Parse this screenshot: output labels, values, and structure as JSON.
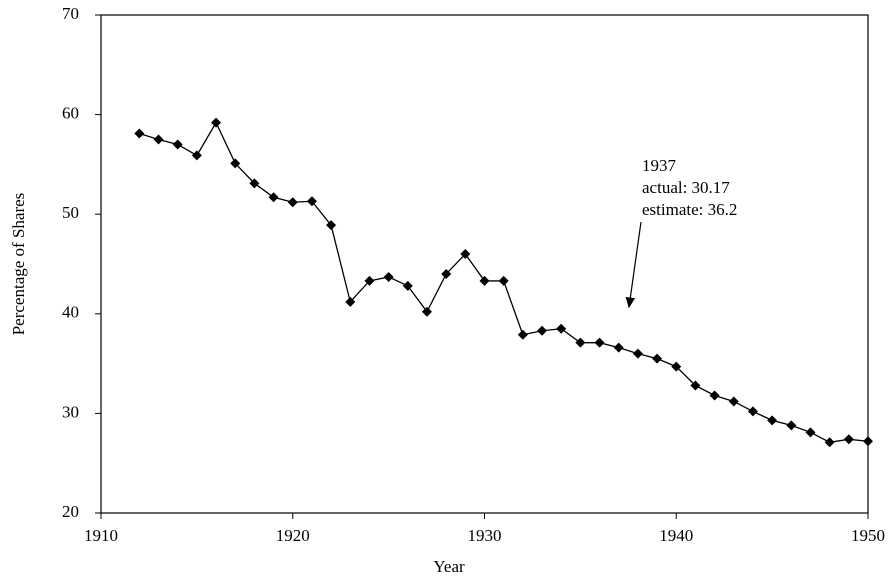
{
  "chart_data": {
    "type": "line",
    "x_label": "Year",
    "y_label": "Percentage of Shares",
    "annotation": [
      "1937",
      "actual: 30.17",
      "estimate: 36.2"
    ],
    "x": [
      1912,
      1913,
      1914,
      1915,
      1916,
      1917,
      1918,
      1919,
      1920,
      1921,
      1922,
      1923,
      1924,
      1925,
      1926,
      1927,
      1928,
      1929,
      1930,
      1931,
      1932,
      1933,
      1934,
      1935,
      1936,
      1937,
      1938,
      1939,
      1940,
      1941,
      1942,
      1943,
      1944,
      1945,
      1946,
      1947,
      1948,
      1949,
      1950
    ],
    "series": [
      {
        "color": "#000000",
        "values": [
          58.1,
          57.5,
          57.0,
          55.9,
          59.2,
          55.1,
          53.1,
          51.7,
          51.2,
          51.3,
          48.9,
          41.2,
          43.3,
          43.7,
          42.8,
          40.2,
          44.0,
          46.0,
          43.3,
          43.3,
          37.9,
          38.3,
          38.5,
          37.1,
          37.1,
          36.6,
          36.0,
          35.5,
          34.7,
          32.8,
          31.8,
          31.2,
          30.2,
          29.3,
          28.8,
          28.1,
          27.1,
          27.4,
          27.2
        ]
      }
    ],
    "xlim": [
      1910,
      1950
    ],
    "xticks": [
      1910,
      1920,
      1930,
      1940,
      1950
    ],
    "ylim": [
      20,
      70
    ],
    "yticks": [
      20,
      30,
      40,
      50,
      60,
      70
    ]
  }
}
